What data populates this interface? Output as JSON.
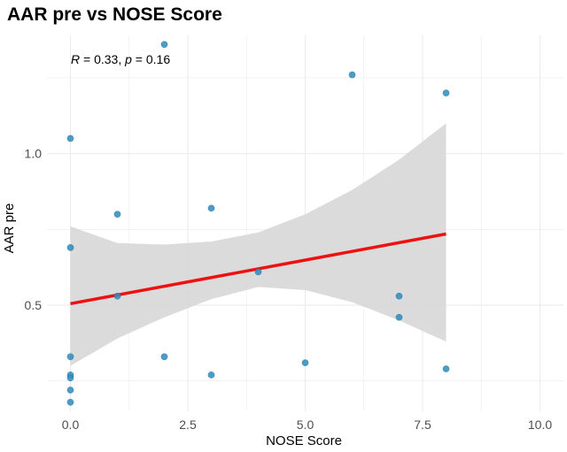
{
  "chart_data": {
    "type": "scatter",
    "title": "AAR pre vs NOSE Score",
    "xlabel": "NOSE Score",
    "ylabel": "AAR pre",
    "xlim": [
      -0.5,
      10.5
    ],
    "ylim": [
      0.15,
      1.39
    ],
    "x_ticks": [
      0.0,
      2.5,
      5.0,
      7.5,
      10.0
    ],
    "x_tick_labels": [
      "0.0",
      "2.5",
      "5.0",
      "7.5",
      "10.0"
    ],
    "y_ticks": [
      0.5,
      1.0
    ],
    "y_tick_labels": [
      "0.5",
      "1.0"
    ],
    "annotation": {
      "r_symbol": "R",
      "r_value": " = 0.33, ",
      "p_symbol": "p",
      "p_value": " = 0.16"
    },
    "points": [
      {
        "x": 0,
        "y": 1.05
      },
      {
        "x": 0,
        "y": 0.69
      },
      {
        "x": 0,
        "y": 0.33
      },
      {
        "x": 0,
        "y": 0.27
      },
      {
        "x": 0,
        "y": 0.26
      },
      {
        "x": 0,
        "y": 0.22
      },
      {
        "x": 0,
        "y": 0.18
      },
      {
        "x": 1,
        "y": 0.8
      },
      {
        "x": 1,
        "y": 0.53
      },
      {
        "x": 2,
        "y": 1.36
      },
      {
        "x": 2,
        "y": 0.33
      },
      {
        "x": 3,
        "y": 0.82
      },
      {
        "x": 3,
        "y": 0.27
      },
      {
        "x": 4,
        "y": 0.61
      },
      {
        "x": 5,
        "y": 0.31
      },
      {
        "x": 6,
        "y": 1.26
      },
      {
        "x": 7,
        "y": 0.53
      },
      {
        "x": 7,
        "y": 0.46
      },
      {
        "x": 8,
        "y": 1.2
      },
      {
        "x": 8,
        "y": 0.29
      }
    ],
    "regression": {
      "x": [
        0,
        1,
        2,
        3,
        4,
        5,
        6,
        7,
        8
      ],
      "fit": [
        0.505,
        0.534,
        0.562,
        0.591,
        0.62,
        0.649,
        0.677,
        0.706,
        0.735
      ],
      "ci_low": [
        0.3,
        0.39,
        0.46,
        0.52,
        0.56,
        0.55,
        0.51,
        0.45,
        0.38
      ],
      "ci_high": [
        0.76,
        0.705,
        0.7,
        0.71,
        0.74,
        0.8,
        0.88,
        0.98,
        1.1
      ]
    },
    "colors": {
      "point": "#2b8cbe",
      "line": "#ee1111",
      "ribbon": "#d9d9d9",
      "grid": "#ebebeb"
    }
  }
}
